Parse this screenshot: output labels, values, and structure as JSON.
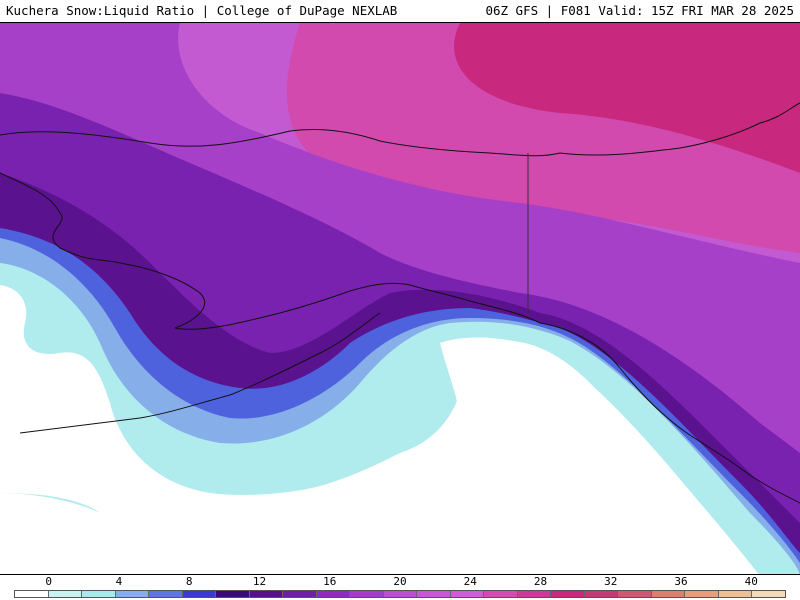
{
  "header": {
    "product": "Kuchera Snow:Liquid Ratio | College of DuPage NEXLAB",
    "run_info": "06Z GFS | F081 Valid: 15Z FRI MAR 28 2025"
  },
  "colorbar": {
    "labels": [
      "0",
      "4",
      "8",
      "12",
      "16",
      "20",
      "24",
      "28",
      "32",
      "36",
      "40"
    ],
    "colors": [
      "#ffffff",
      "#c8f2f2",
      "#a7e9ec",
      "#87aee8",
      "#5e76e0",
      "#3a3ad6",
      "#3a0a78",
      "#5a108e",
      "#6e1ea8",
      "#8a2cc0",
      "#a23ccc",
      "#b450d2",
      "#c15ad4",
      "#cf5ed0",
      "#d64ab4",
      "#d0389c",
      "#c8287e",
      "#c43a74",
      "#cf5870",
      "#d9806e",
      "#e2a07c",
      "#edc097",
      "#f5dab8"
    ]
  },
  "map": {
    "colors": {
      "ocean_clear": "#ffffff",
      "light_cyan": "#b0ecee",
      "mid_cyan": "#a2e2ea",
      "light_blue": "#86aee8",
      "blue": "#4e62de",
      "dark_purple": "#5a128e",
      "purple": "#7a22b0",
      "violet": "#a640c8",
      "orchid": "#c45ad2",
      "pink_magenta": "#d24aae",
      "magenta": "#c8287e",
      "coast": "#111111",
      "border": "#333333"
    }
  }
}
